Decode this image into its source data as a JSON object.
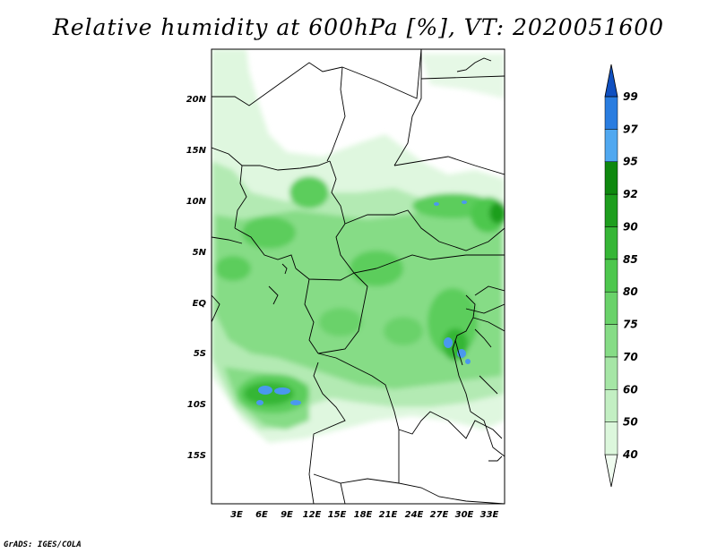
{
  "title": "Relative humidity at 600hPa [%], VT: 2020051600",
  "credit": "GrADS: IGES/COLA",
  "map": {
    "lat_labels": [
      "20N",
      "15N",
      "10N",
      "5N",
      "EQ",
      "5S",
      "10S",
      "15S"
    ],
    "lon_labels": [
      "3E",
      "6E",
      "9E",
      "12E",
      "15E",
      "18E",
      "21E",
      "24E",
      "27E",
      "30E",
      "33E"
    ]
  },
  "colorbar": {
    "levels": [
      "40",
      "50",
      "60",
      "70",
      "75",
      "80",
      "85",
      "90",
      "92",
      "95",
      "97",
      "99"
    ],
    "colors": [
      "#f0fcf0",
      "#dcf7dc",
      "#c3efc3",
      "#a6e6a6",
      "#86dc86",
      "#6ad26a",
      "#4ec74e",
      "#36b636",
      "#1e9e1e",
      "#0f880f",
      "#50a8f0",
      "#2a7de0",
      "#1050c0"
    ]
  }
}
